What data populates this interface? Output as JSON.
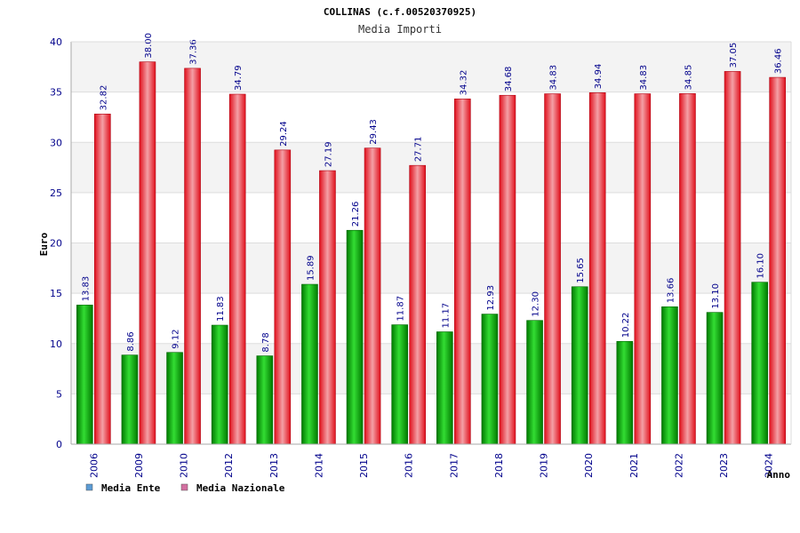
{
  "chart_data": {
    "type": "bar",
    "title": "COLLINAS (c.f.00520370925)",
    "subtitle": "Media Importi",
    "xlabel": "Anno",
    "ylabel": "Euro",
    "ylim": [
      0,
      40
    ],
    "yticks": [
      0,
      5,
      10,
      15,
      20,
      25,
      30,
      35,
      40
    ],
    "grid": true,
    "legend_position": "bottom-left",
    "categories": [
      "2006",
      "2009",
      "2010",
      "2012",
      "2013",
      "2014",
      "2015",
      "2016",
      "2017",
      "2018",
      "2019",
      "2020",
      "2021",
      "2022",
      "2023",
      "2024"
    ],
    "series": [
      {
        "name": "Media Ente",
        "color": "#00aa00",
        "legend_color": "#5b9bd5",
        "values": [
          13.83,
          8.86,
          9.12,
          11.83,
          8.78,
          15.89,
          21.26,
          11.87,
          11.17,
          12.93,
          12.3,
          15.65,
          10.22,
          13.66,
          13.1,
          16.1
        ],
        "labels": [
          "13.83",
          "8.86",
          "9.12",
          "11.83",
          "8.78",
          "15.89",
          "21.26",
          "11.87",
          "11.17",
          "12.93",
          "12.30",
          "15.65",
          "10.22",
          "13.66",
          "13.10",
          "16.10"
        ]
      },
      {
        "name": "Media Nazionale",
        "color": "#e8101e",
        "legend_color": "#d36fa0",
        "values": [
          32.82,
          38.0,
          37.36,
          34.79,
          29.24,
          27.19,
          29.43,
          27.71,
          34.32,
          34.68,
          34.83,
          34.94,
          34.83,
          34.85,
          37.05,
          36.46
        ],
        "labels": [
          "32.82",
          "38.00",
          "37.36",
          "34.79",
          "29.24",
          "27.19",
          "29.43",
          "27.71",
          "34.32",
          "34.68",
          "34.83",
          "34.94",
          "34.83",
          "34.85",
          "37.05",
          "36.46"
        ]
      }
    ]
  }
}
